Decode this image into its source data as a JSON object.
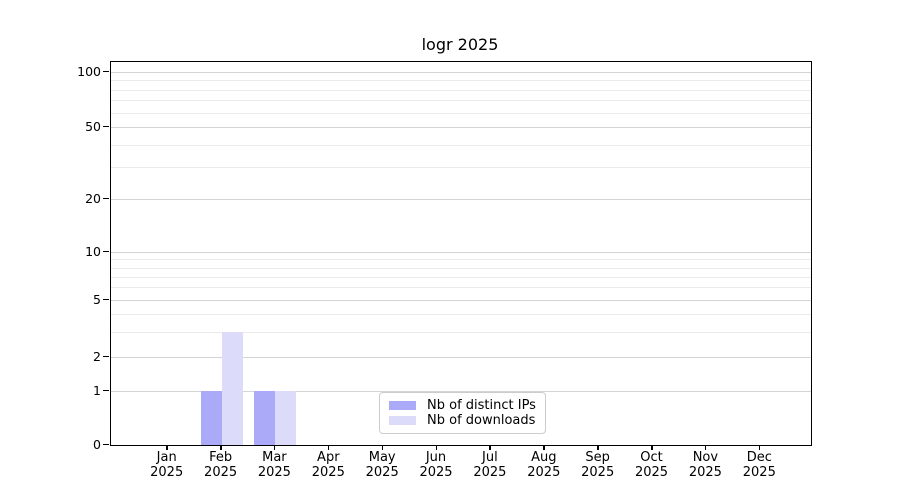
{
  "figure": {
    "title": "logr 2025"
  },
  "chart_data": {
    "type": "bar",
    "title": "logr 2025",
    "categories": [
      "Jan",
      "Feb",
      "Mar",
      "Apr",
      "May",
      "Jun",
      "Jul",
      "Aug",
      "Sep",
      "Oct",
      "Nov",
      "Dec"
    ],
    "category_sublabel": "2025",
    "series": [
      {
        "name": "Nb of distinct IPs",
        "color": "#aaaaf8",
        "values": [
          0,
          1,
          1,
          0,
          0,
          0,
          0,
          0,
          0,
          0,
          0,
          0
        ]
      },
      {
        "name": "Nb of downloads",
        "color": "#dcdcfa",
        "values": [
          0,
          3,
          1,
          0,
          0,
          0,
          0,
          0,
          0,
          0,
          0,
          0
        ]
      }
    ],
    "yticks": [
      0,
      1,
      2,
      5,
      10,
      20,
      50,
      100
    ],
    "minor_gridlines": [
      3,
      4,
      6,
      7,
      8,
      9,
      30,
      40,
      60,
      70,
      80,
      90
    ],
    "yscale": "log-like with linear 0-1 segment",
    "ylim": [
      0,
      110
    ],
    "xlabel": "",
    "ylabel": "",
    "grid": "horizontal",
    "legend_position": "inside-bottom-center",
    "colors": {
      "axis": "#000000",
      "major_grid": "#d4d4d4",
      "minor_grid": "#eaeaea",
      "background": "#ffffff"
    }
  }
}
